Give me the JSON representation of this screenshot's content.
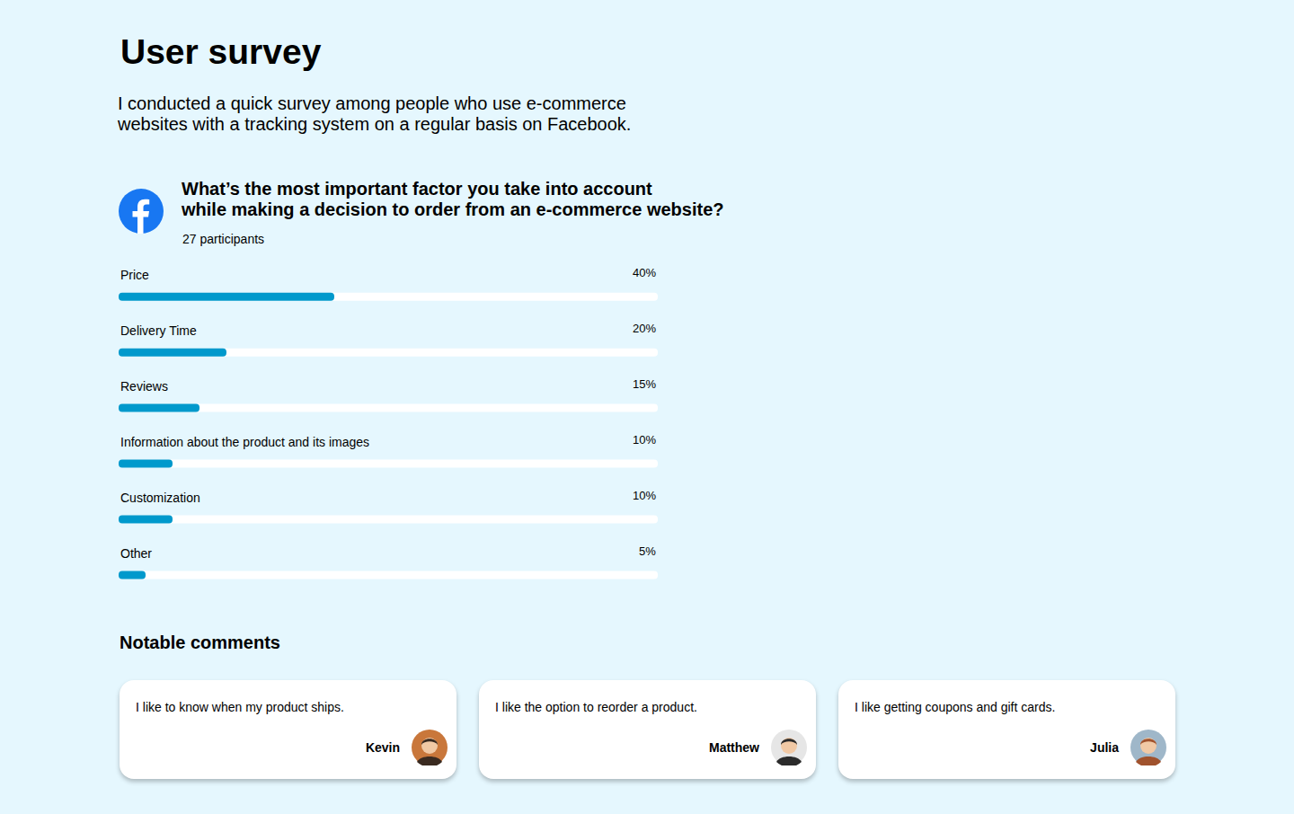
{
  "heading": "User survey",
  "intro": [
    "I conducted a quick survey among people who use e-commerce",
    "websites with a tracking system on a regular basis on Facebook."
  ],
  "poll": {
    "question": [
      "What’s the most important factor you take into account",
      "while making a decision to order from an e-commerce website?"
    ],
    "participants": "27 participants"
  },
  "chart_data": {
    "type": "bar",
    "orientation": "horizontal",
    "categories": [
      "Price",
      "Delivery Time",
      "Reviews",
      "Information about the product and its images",
      "Customization",
      "Other"
    ],
    "values": [
      40,
      20,
      15,
      10,
      10,
      5
    ],
    "value_labels": [
      "40%",
      "20%",
      "15%",
      "10%",
      "10%",
      "5%"
    ],
    "data_labels": true,
    "xlim": [
      0,
      100
    ],
    "color": "#0099cc",
    "tick_labels": false,
    "grid": false
  },
  "comments": {
    "title": "Notable comments",
    "items": [
      {
        "text": "I like to know when my product ships.",
        "name": "Kevin"
      },
      {
        "text": "I like the option to reorder a product.",
        "name": "Matthew"
      },
      {
        "text": "I like getting coupons and gift cards.",
        "name": "Julia"
      }
    ]
  }
}
